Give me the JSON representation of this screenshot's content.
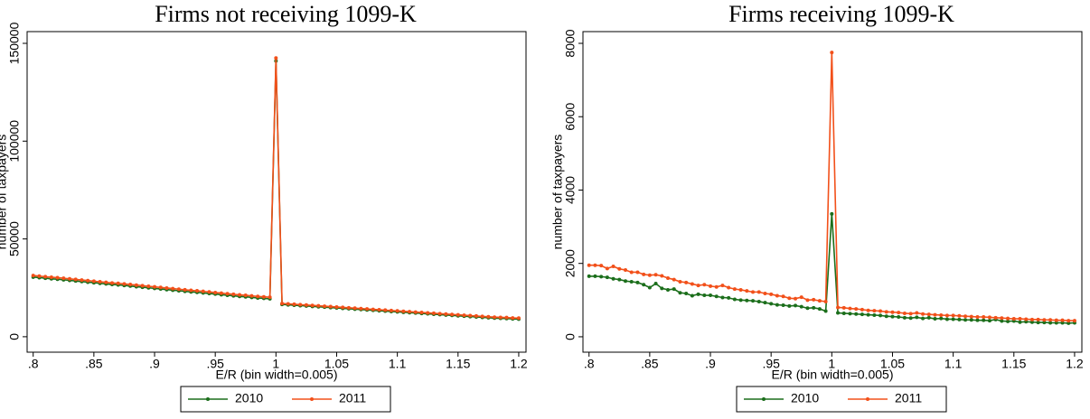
{
  "chart_data": [
    {
      "type": "line",
      "title": "Firms not receiving 1099-K",
      "xlabel": "E/R (bin width=0.005)",
      "ylabel": "number of taxpayers",
      "x": [
        0.8,
        0.805,
        0.81,
        0.815,
        0.82,
        0.825,
        0.83,
        0.835,
        0.84,
        0.845,
        0.85,
        0.855,
        0.86,
        0.865,
        0.87,
        0.875,
        0.88,
        0.885,
        0.89,
        0.895,
        0.9,
        0.905,
        0.91,
        0.915,
        0.92,
        0.925,
        0.93,
        0.935,
        0.94,
        0.945,
        0.95,
        0.955,
        0.96,
        0.965,
        0.97,
        0.975,
        0.98,
        0.985,
        0.99,
        0.995,
        1.0,
        1.005,
        1.01,
        1.015,
        1.02,
        1.025,
        1.03,
        1.035,
        1.04,
        1.045,
        1.05,
        1.055,
        1.06,
        1.065,
        1.07,
        1.075,
        1.08,
        1.085,
        1.09,
        1.095,
        1.1,
        1.105,
        1.11,
        1.115,
        1.12,
        1.125,
        1.13,
        1.135,
        1.14,
        1.145,
        1.15,
        1.155,
        1.16,
        1.165,
        1.17,
        1.175,
        1.18,
        1.185,
        1.19,
        1.195,
        1.2
      ],
      "series": [
        {
          "name": "2010",
          "color": "#1b6e1b",
          "values": [
            30500,
            30200,
            29900,
            29600,
            29400,
            29100,
            28800,
            28500,
            28200,
            27900,
            27600,
            27300,
            27000,
            26700,
            26500,
            26200,
            25900,
            25600,
            25300,
            25000,
            24700,
            24400,
            24100,
            23800,
            23500,
            23200,
            22900,
            22700,
            22400,
            22100,
            21800,
            21500,
            21200,
            20900,
            20600,
            20400,
            20100,
            19800,
            19600,
            19400,
            141000,
            16500,
            16300,
            16100,
            15900,
            15700,
            15500,
            15300,
            15100,
            14900,
            14700,
            14500,
            14300,
            14100,
            13900,
            13700,
            13500,
            13300,
            13100,
            12900,
            12700,
            12500,
            12300,
            12100,
            11900,
            11700,
            11500,
            11300,
            11100,
            10900,
            10700,
            10500,
            10300,
            10100,
            9900,
            9700,
            9500,
            9400,
            9300,
            9100,
            9000
          ]
        },
        {
          "name": "2011",
          "color": "#f2501a",
          "values": [
            31300,
            31000,
            30700,
            30400,
            30200,
            29900,
            29600,
            29300,
            29000,
            28700,
            28400,
            28100,
            27800,
            27500,
            27300,
            27000,
            26700,
            26400,
            26100,
            25800,
            25500,
            25200,
            24900,
            24600,
            24300,
            24000,
            23700,
            23500,
            23200,
            22900,
            22600,
            22300,
            22000,
            21700,
            21400,
            21200,
            20900,
            20600,
            20400,
            20200,
            142500,
            17000,
            16800,
            16600,
            16400,
            16200,
            16000,
            15800,
            15600,
            15400,
            15200,
            15000,
            14800,
            14600,
            14400,
            14200,
            14000,
            13800,
            13600,
            13400,
            13200,
            13000,
            12800,
            12600,
            12400,
            12200,
            12000,
            11800,
            11600,
            11400,
            11200,
            11000,
            10800,
            10600,
            10400,
            10200,
            10000,
            9900,
            9800,
            9600,
            9500
          ]
        }
      ],
      "xlim": [
        0.795,
        1.206
      ],
      "xticks": [
        {
          "value": 0.8,
          "label": ".8"
        },
        {
          "value": 0.85,
          "label": ".85"
        },
        {
          "value": 0.9,
          "label": ".9"
        },
        {
          "value": 0.95,
          "label": ".95"
        },
        1,
        1.05,
        1.1,
        1.15,
        1.2
      ],
      "ylim": [
        -7900,
        156000
      ],
      "yticks": [
        0,
        50000,
        100000,
        150000
      ],
      "legend": "bottom"
    },
    {
      "type": "line",
      "title": "Firms receiving 1099-K",
      "xlabel": "E/R (bin width=0.005)",
      "ylabel": "number of taxpayers",
      "x": [
        0.8,
        0.805,
        0.81,
        0.815,
        0.82,
        0.825,
        0.83,
        0.835,
        0.84,
        0.845,
        0.85,
        0.855,
        0.86,
        0.865,
        0.87,
        0.875,
        0.88,
        0.885,
        0.89,
        0.895,
        0.9,
        0.905,
        0.91,
        0.915,
        0.92,
        0.925,
        0.93,
        0.935,
        0.94,
        0.945,
        0.95,
        0.955,
        0.96,
        0.965,
        0.97,
        0.975,
        0.98,
        0.985,
        0.99,
        0.995,
        1.0,
        1.005,
        1.01,
        1.015,
        1.02,
        1.025,
        1.03,
        1.035,
        1.04,
        1.045,
        1.05,
        1.055,
        1.06,
        1.065,
        1.07,
        1.075,
        1.08,
        1.085,
        1.09,
        1.095,
        1.1,
        1.105,
        1.11,
        1.115,
        1.12,
        1.125,
        1.13,
        1.135,
        1.14,
        1.145,
        1.15,
        1.155,
        1.16,
        1.165,
        1.17,
        1.175,
        1.18,
        1.185,
        1.19,
        1.195,
        1.2
      ],
      "series": [
        {
          "name": "2010",
          "color": "#1b6e1b",
          "values": [
            1650,
            1650,
            1640,
            1620,
            1580,
            1560,
            1520,
            1500,
            1480,
            1420,
            1340,
            1450,
            1320,
            1280,
            1300,
            1200,
            1180,
            1120,
            1160,
            1130,
            1130,
            1100,
            1070,
            1060,
            1020,
            1000,
            990,
            980,
            960,
            930,
            900,
            870,
            860,
            840,
            850,
            820,
            780,
            790,
            760,
            700,
            3350,
            650,
            640,
            630,
            620,
            610,
            600,
            590,
            580,
            560,
            550,
            540,
            520,
            510,
            530,
            500,
            520,
            490,
            500,
            480,
            480,
            470,
            460,
            460,
            450,
            450,
            440,
            470,
            430,
            420,
            430,
            400,
            410,
            400,
            390,
            390,
            380,
            380,
            380,
            370,
            380
          ]
        },
        {
          "name": "2011",
          "color": "#f2501a",
          "values": [
            1950,
            1950,
            1940,
            1860,
            1920,
            1850,
            1820,
            1760,
            1760,
            1700,
            1680,
            1690,
            1660,
            1600,
            1560,
            1500,
            1480,
            1440,
            1400,
            1420,
            1380,
            1360,
            1400,
            1340,
            1300,
            1280,
            1250,
            1220,
            1220,
            1180,
            1160,
            1120,
            1100,
            1050,
            1040,
            1080,
            1000,
            1010,
            980,
            960,
            7750,
            800,
            790,
            770,
            760,
            740,
            720,
            710,
            700,
            680,
            670,
            660,
            640,
            630,
            650,
            620,
            610,
            600,
            590,
            580,
            580,
            570,
            560,
            550,
            540,
            540,
            530,
            520,
            510,
            500,
            490,
            490,
            480,
            470,
            470,
            460,
            460,
            450,
            450,
            440,
            440
          ]
        }
      ],
      "xlim": [
        0.795,
        1.206
      ],
      "xticks": [
        {
          "value": 0.8,
          "label": ".8"
        },
        {
          "value": 0.85,
          "label": ".85"
        },
        {
          "value": 0.9,
          "label": ".9"
        },
        {
          "value": 0.95,
          "label": ".95"
        },
        1,
        1.05,
        1.1,
        1.15,
        1.2
      ],
      "ylim": [
        -420,
        8320
      ],
      "yticks": [
        0,
        2000,
        4000,
        6000,
        8000
      ],
      "legend": "bottom"
    }
  ]
}
